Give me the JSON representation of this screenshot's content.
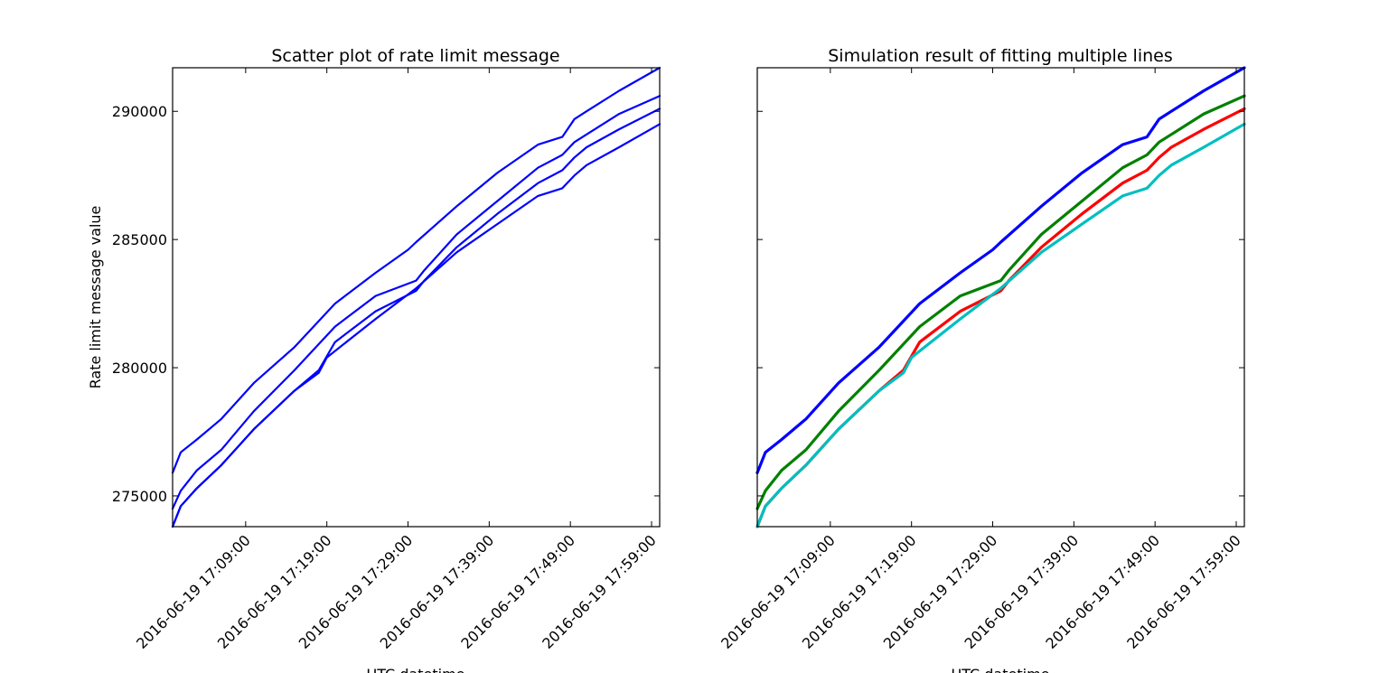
{
  "chart_data": [
    {
      "type": "line",
      "title": "Scatter plot of rate limit message",
      "xlabel": "UTC datetime",
      "ylabel": "Rate limit message value",
      "xlim": [
        "2016-06-19 17:00:00",
        "2016-06-19 18:00:00"
      ],
      "ylim": [
        273800,
        291700
      ],
      "x_ticks": [
        "2016-06-19 17:09:00",
        "2016-06-19 17:19:00",
        "2016-06-19 17:29:00",
        "2016-06-19 17:39:00",
        "2016-06-19 17:49:00",
        "2016-06-19 17:59:00"
      ],
      "y_ticks": [
        275000,
        280000,
        285000,
        290000
      ],
      "y_tick_labels": [
        "275000",
        "280000",
        "285000",
        "290000"
      ],
      "grid": false,
      "series": [
        {
          "color": "#0000ff",
          "x": [
            "17:00:00",
            "17:01:00",
            "17:03:00",
            "17:06:00",
            "17:10:00",
            "17:15:00",
            "17:20:00",
            "17:25:00",
            "17:29:00",
            "17:30:00",
            "17:35:00",
            "17:40:00",
            "17:45:00",
            "17:48:00",
            "17:49:30",
            "17:51:00",
            "17:55:00",
            "18:00:00"
          ],
          "y": [
            275900,
            276700,
            277200,
            278000,
            279400,
            280800,
            282500,
            283700,
            284600,
            284900,
            286300,
            287600,
            288700,
            289000,
            289700,
            290000,
            290800,
            291700
          ]
        },
        {
          "color": "#0000ff",
          "x": [
            "17:00:00",
            "17:01:00",
            "17:03:00",
            "17:06:00",
            "17:10:00",
            "17:15:00",
            "17:20:00",
            "17:25:00",
            "17:30:00",
            "17:31:00",
            "17:35:00",
            "17:40:00",
            "17:45:00",
            "17:48:00",
            "17:49:30",
            "17:51:00",
            "17:55:00",
            "18:00:00"
          ],
          "y": [
            274500,
            275200,
            276000,
            276800,
            278300,
            279900,
            281600,
            282800,
            283400,
            283800,
            285200,
            286500,
            287800,
            288300,
            288800,
            289100,
            289900,
            290600
          ]
        },
        {
          "color": "#0000ff",
          "x": [
            "17:00:00",
            "17:01:00",
            "17:03:00",
            "17:06:00",
            "17:10:00",
            "17:15:00",
            "17:18:00",
            "17:20:00",
            "17:25:00",
            "17:30:00",
            "17:31:00",
            "17:35:00",
            "17:40:00",
            "17:45:00",
            "17:48:00",
            "17:49:30",
            "17:51:00",
            "17:55:00",
            "18:00:00"
          ],
          "y": [
            273800,
            274600,
            275300,
            276200,
            277600,
            279100,
            279900,
            281000,
            282200,
            283000,
            283400,
            284700,
            286000,
            287200,
            287700,
            288200,
            288600,
            289300,
            290100
          ]
        },
        {
          "color": "#0000ff",
          "x": [
            "17:00:00",
            "17:01:00",
            "17:03:00",
            "17:06:00",
            "17:10:00",
            "17:15:00",
            "17:18:00",
            "17:19:00",
            "17:25:00",
            "17:30:00",
            "17:35:00",
            "17:40:00",
            "17:45:00",
            "17:48:00",
            "17:49:30",
            "17:51:00",
            "17:55:00",
            "18:00:00"
          ],
          "y": [
            273800,
            274600,
            275300,
            276200,
            277600,
            279100,
            279800,
            280400,
            281900,
            283100,
            284500,
            285600,
            286700,
            287000,
            287500,
            287900,
            288600,
            289500
          ]
        }
      ]
    },
    {
      "type": "line",
      "title": "Simulation result of fitting multiple lines",
      "xlabel": "UTC datetime",
      "ylabel": "",
      "xlim": [
        "2016-06-19 17:00:00",
        "2016-06-19 18:00:00"
      ],
      "ylim": [
        273800,
        291700
      ],
      "x_ticks": [
        "2016-06-19 17:09:00",
        "2016-06-19 17:19:00",
        "2016-06-19 17:29:00",
        "2016-06-19 17:39:00",
        "2016-06-19 17:49:00",
        "2016-06-19 17:59:00"
      ],
      "y_ticks": [
        275000,
        280000,
        285000,
        290000
      ],
      "y_tick_labels": [
        "",
        "",
        "",
        ""
      ],
      "grid": false,
      "series": [
        {
          "color": "#0000ff",
          "x": [
            "17:00:00",
            "17:01:00",
            "17:03:00",
            "17:06:00",
            "17:10:00",
            "17:15:00",
            "17:20:00",
            "17:25:00",
            "17:29:00",
            "17:30:00",
            "17:35:00",
            "17:40:00",
            "17:45:00",
            "17:48:00",
            "17:49:30",
            "17:51:00",
            "17:55:00",
            "18:00:00"
          ],
          "y": [
            275900,
            276700,
            277200,
            278000,
            279400,
            280800,
            282500,
            283700,
            284600,
            284900,
            286300,
            287600,
            288700,
            289000,
            289700,
            290000,
            290800,
            291700
          ]
        },
        {
          "color": "#008000",
          "x": [
            "17:00:00",
            "17:01:00",
            "17:03:00",
            "17:06:00",
            "17:10:00",
            "17:15:00",
            "17:20:00",
            "17:25:00",
            "17:30:00",
            "17:31:00",
            "17:35:00",
            "17:40:00",
            "17:45:00",
            "17:48:00",
            "17:49:30",
            "17:51:00",
            "17:55:00",
            "18:00:00"
          ],
          "y": [
            274500,
            275200,
            276000,
            276800,
            278300,
            279900,
            281600,
            282800,
            283400,
            283800,
            285200,
            286500,
            287800,
            288300,
            288800,
            289100,
            289900,
            290600
          ]
        },
        {
          "color": "#ff0000",
          "x": [
            "17:00:00",
            "17:01:00",
            "17:03:00",
            "17:06:00",
            "17:10:00",
            "17:15:00",
            "17:18:00",
            "17:20:00",
            "17:25:00",
            "17:30:00",
            "17:31:00",
            "17:35:00",
            "17:40:00",
            "17:45:00",
            "17:48:00",
            "17:49:30",
            "17:51:00",
            "17:55:00",
            "18:00:00"
          ],
          "y": [
            273800,
            274600,
            275300,
            276200,
            277600,
            279100,
            279900,
            281000,
            282200,
            283000,
            283400,
            284700,
            286000,
            287200,
            287700,
            288200,
            288600,
            289300,
            290100
          ]
        },
        {
          "color": "#00bfbf",
          "x": [
            "17:00:00",
            "17:01:00",
            "17:03:00",
            "17:06:00",
            "17:10:00",
            "17:15:00",
            "17:18:00",
            "17:19:00",
            "17:25:00",
            "17:30:00",
            "17:35:00",
            "17:40:00",
            "17:45:00",
            "17:48:00",
            "17:49:30",
            "17:51:00",
            "17:55:00",
            "18:00:00"
          ],
          "y": [
            273800,
            274600,
            275300,
            276200,
            277600,
            279100,
            279800,
            280400,
            281900,
            283100,
            284500,
            285600,
            286700,
            287000,
            287500,
            287900,
            288600,
            289500
          ]
        }
      ]
    }
  ]
}
